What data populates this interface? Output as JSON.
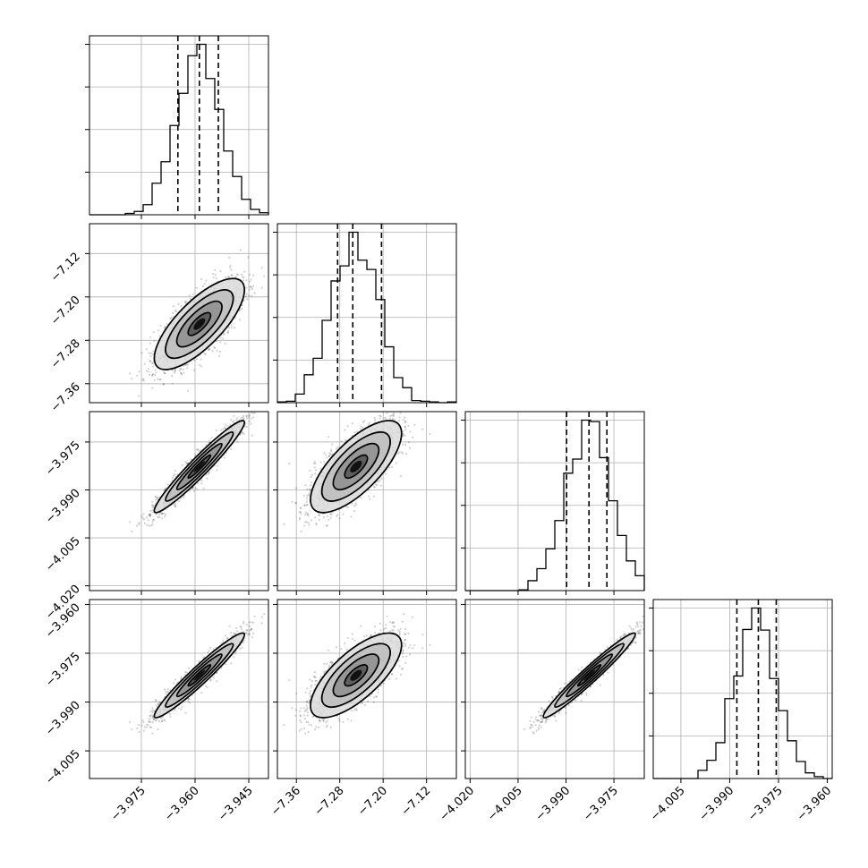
{
  "chart_data": {
    "type": "scatter",
    "kind": "corner-plot",
    "title": "",
    "grid": true,
    "parameters": [
      {
        "range": [
          -3.9895,
          -3.9395
        ],
        "ticks": [
          -3.975,
          -3.96,
          -3.945
        ],
        "tick_labels": [
          "−3.975",
          "−3.960",
          "−3.945"
        ],
        "mean": -3.9588,
        "sd": 0.0063,
        "quantiles": [
          -3.9648,
          -3.9588,
          -3.9535
        ]
      },
      {
        "range": [
          -7.395,
          -7.065
        ],
        "ticks": [
          -7.36,
          -7.28,
          -7.2,
          -7.12
        ],
        "tick_labels": [
          "−7.36",
          "−7.28",
          "−7.20",
          "−7.12"
        ],
        "mean": -7.25,
        "sd": 0.042,
        "quantiles": [
          -7.284,
          -7.256,
          -7.203
        ]
      },
      {
        "range": [
          -4.0215,
          -3.9655
        ],
        "ticks": [
          -4.02,
          -4.005,
          -3.99,
          -3.975
        ],
        "tick_labels": [
          "−4.020",
          "−4.005",
          "−3.990",
          "−3.975"
        ],
        "mean": -3.9827,
        "sd": 0.0072,
        "quantiles": [
          -3.9898,
          -3.9828,
          -3.9772
        ]
      },
      {
        "range": [
          -4.0135,
          -3.9585
        ],
        "ticks": [
          -4.005,
          -3.99,
          -3.975,
          -3.96
        ],
        "tick_labels": [
          "−4.005",
          "−3.990",
          "−3.975",
          "−3.960"
        ],
        "mean": -3.9818,
        "sd": 0.0065,
        "quantiles": [
          -3.9878,
          -3.9812,
          -3.9757
        ]
      }
    ],
    "correlations": [
      [
        1,
        0.75,
        0.96,
        0.96
      ],
      [
        0.75,
        1,
        0.72,
        0.72
      ],
      [
        0.96,
        0.72,
        1,
        0.97
      ],
      [
        0.96,
        0.72,
        0.97,
        1
      ]
    ],
    "contour_levels_sigma": [
      0.5,
      1.0,
      1.5,
      2.0
    ],
    "n_samples": 1500
  }
}
